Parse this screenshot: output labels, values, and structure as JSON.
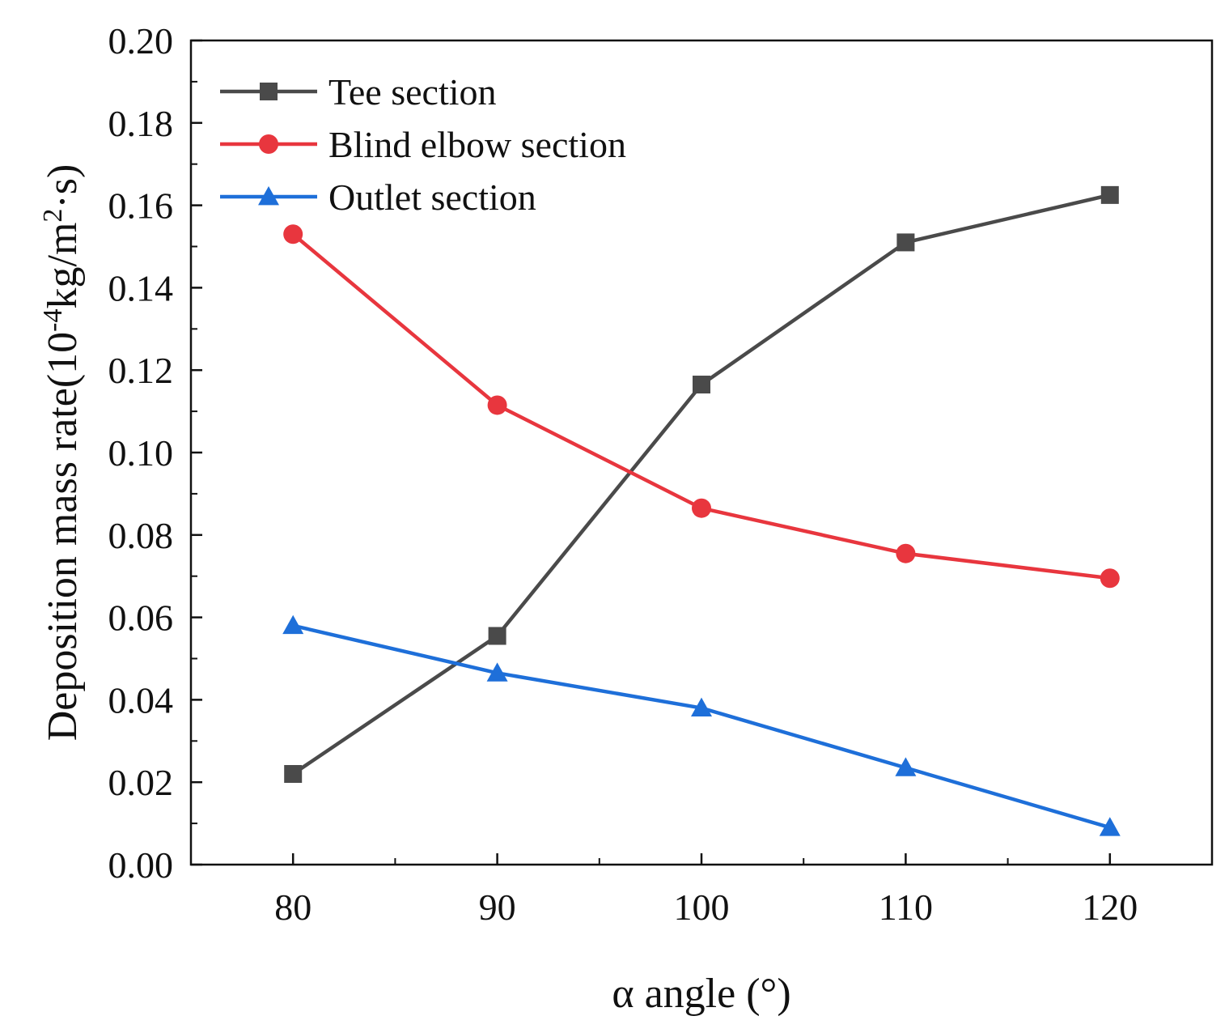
{
  "chart_data": {
    "type": "line",
    "title": "",
    "xlabel": "α angle (°)",
    "ylabel": "Deposition mass rate(10",
    "ylabel_sup1": "-4",
    "ylabel_mid": "kg/m",
    "ylabel_sup2": "2",
    "ylabel_end": "·s)",
    "xlim": [
      75,
      125
    ],
    "ylim": [
      0.0,
      0.2
    ],
    "x_ticks": [
      80,
      90,
      100,
      110,
      120
    ],
    "x_tick_labels": [
      "80",
      "90",
      "100",
      "110",
      "120"
    ],
    "x_minor_ticks": [
      85,
      95,
      105,
      115
    ],
    "y_ticks": [
      0.0,
      0.02,
      0.04,
      0.06,
      0.08,
      0.1,
      0.12,
      0.14,
      0.16,
      0.18,
      0.2
    ],
    "y_tick_labels": [
      "0.00",
      "0.02",
      "0.04",
      "0.06",
      "0.08",
      "0.10",
      "0.12",
      "0.14",
      "0.16",
      "0.18",
      "0.20"
    ],
    "y_minor_ticks": [
      0.01,
      0.03,
      0.05,
      0.07,
      0.09,
      0.11,
      0.13,
      0.15,
      0.17,
      0.19
    ],
    "legend_position": "top-left",
    "x": [
      80,
      90,
      100,
      110,
      120
    ],
    "series": [
      {
        "name": "Tee section",
        "values": [
          0.022,
          0.0555,
          0.1165,
          0.151,
          0.1625
        ],
        "color": "#4a4a4a",
        "marker": "square"
      },
      {
        "name": "Blind elbow section",
        "values": [
          0.153,
          0.1115,
          0.0865,
          0.0755,
          0.0695
        ],
        "color": "#e8363e",
        "marker": "circle"
      },
      {
        "name": "Outlet section",
        "values": [
          0.058,
          0.0465,
          0.038,
          0.0235,
          0.009
        ],
        "color": "#1e6fd9",
        "marker": "triangle"
      }
    ]
  }
}
